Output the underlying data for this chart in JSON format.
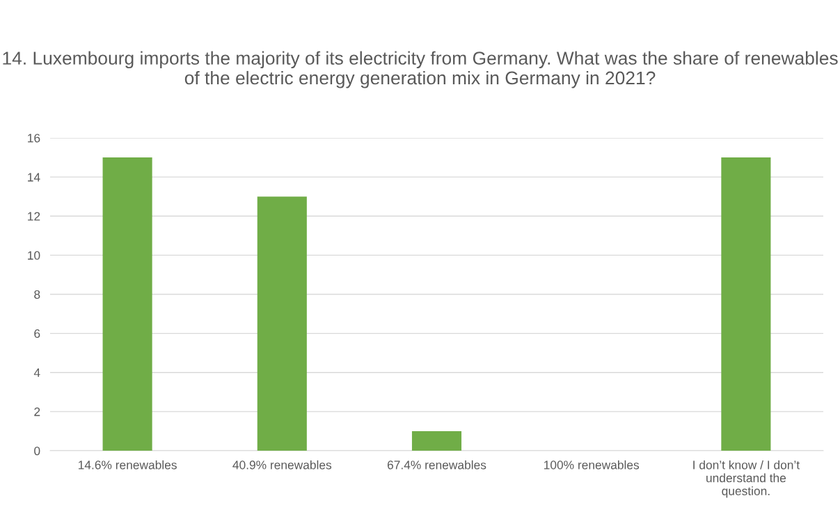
{
  "chart_data": {
    "type": "bar",
    "title": "14. Luxembourg imports the majority of its electricity from Germany. What was the share of renewables of the electric energy generation mix in Germany in 2021?",
    "categories": [
      "14.6% renewables",
      "40.9% renewables",
      "67.4% renewables",
      "100% renewables",
      "I don’t know / I don’t understand the question."
    ],
    "values": [
      15,
      13,
      1,
      0,
      15
    ],
    "color": "#70ad47",
    "ylim": [
      0,
      16
    ],
    "yticks": [
      0,
      2,
      4,
      6,
      8,
      10,
      12,
      14,
      16
    ],
    "grid": "y"
  }
}
